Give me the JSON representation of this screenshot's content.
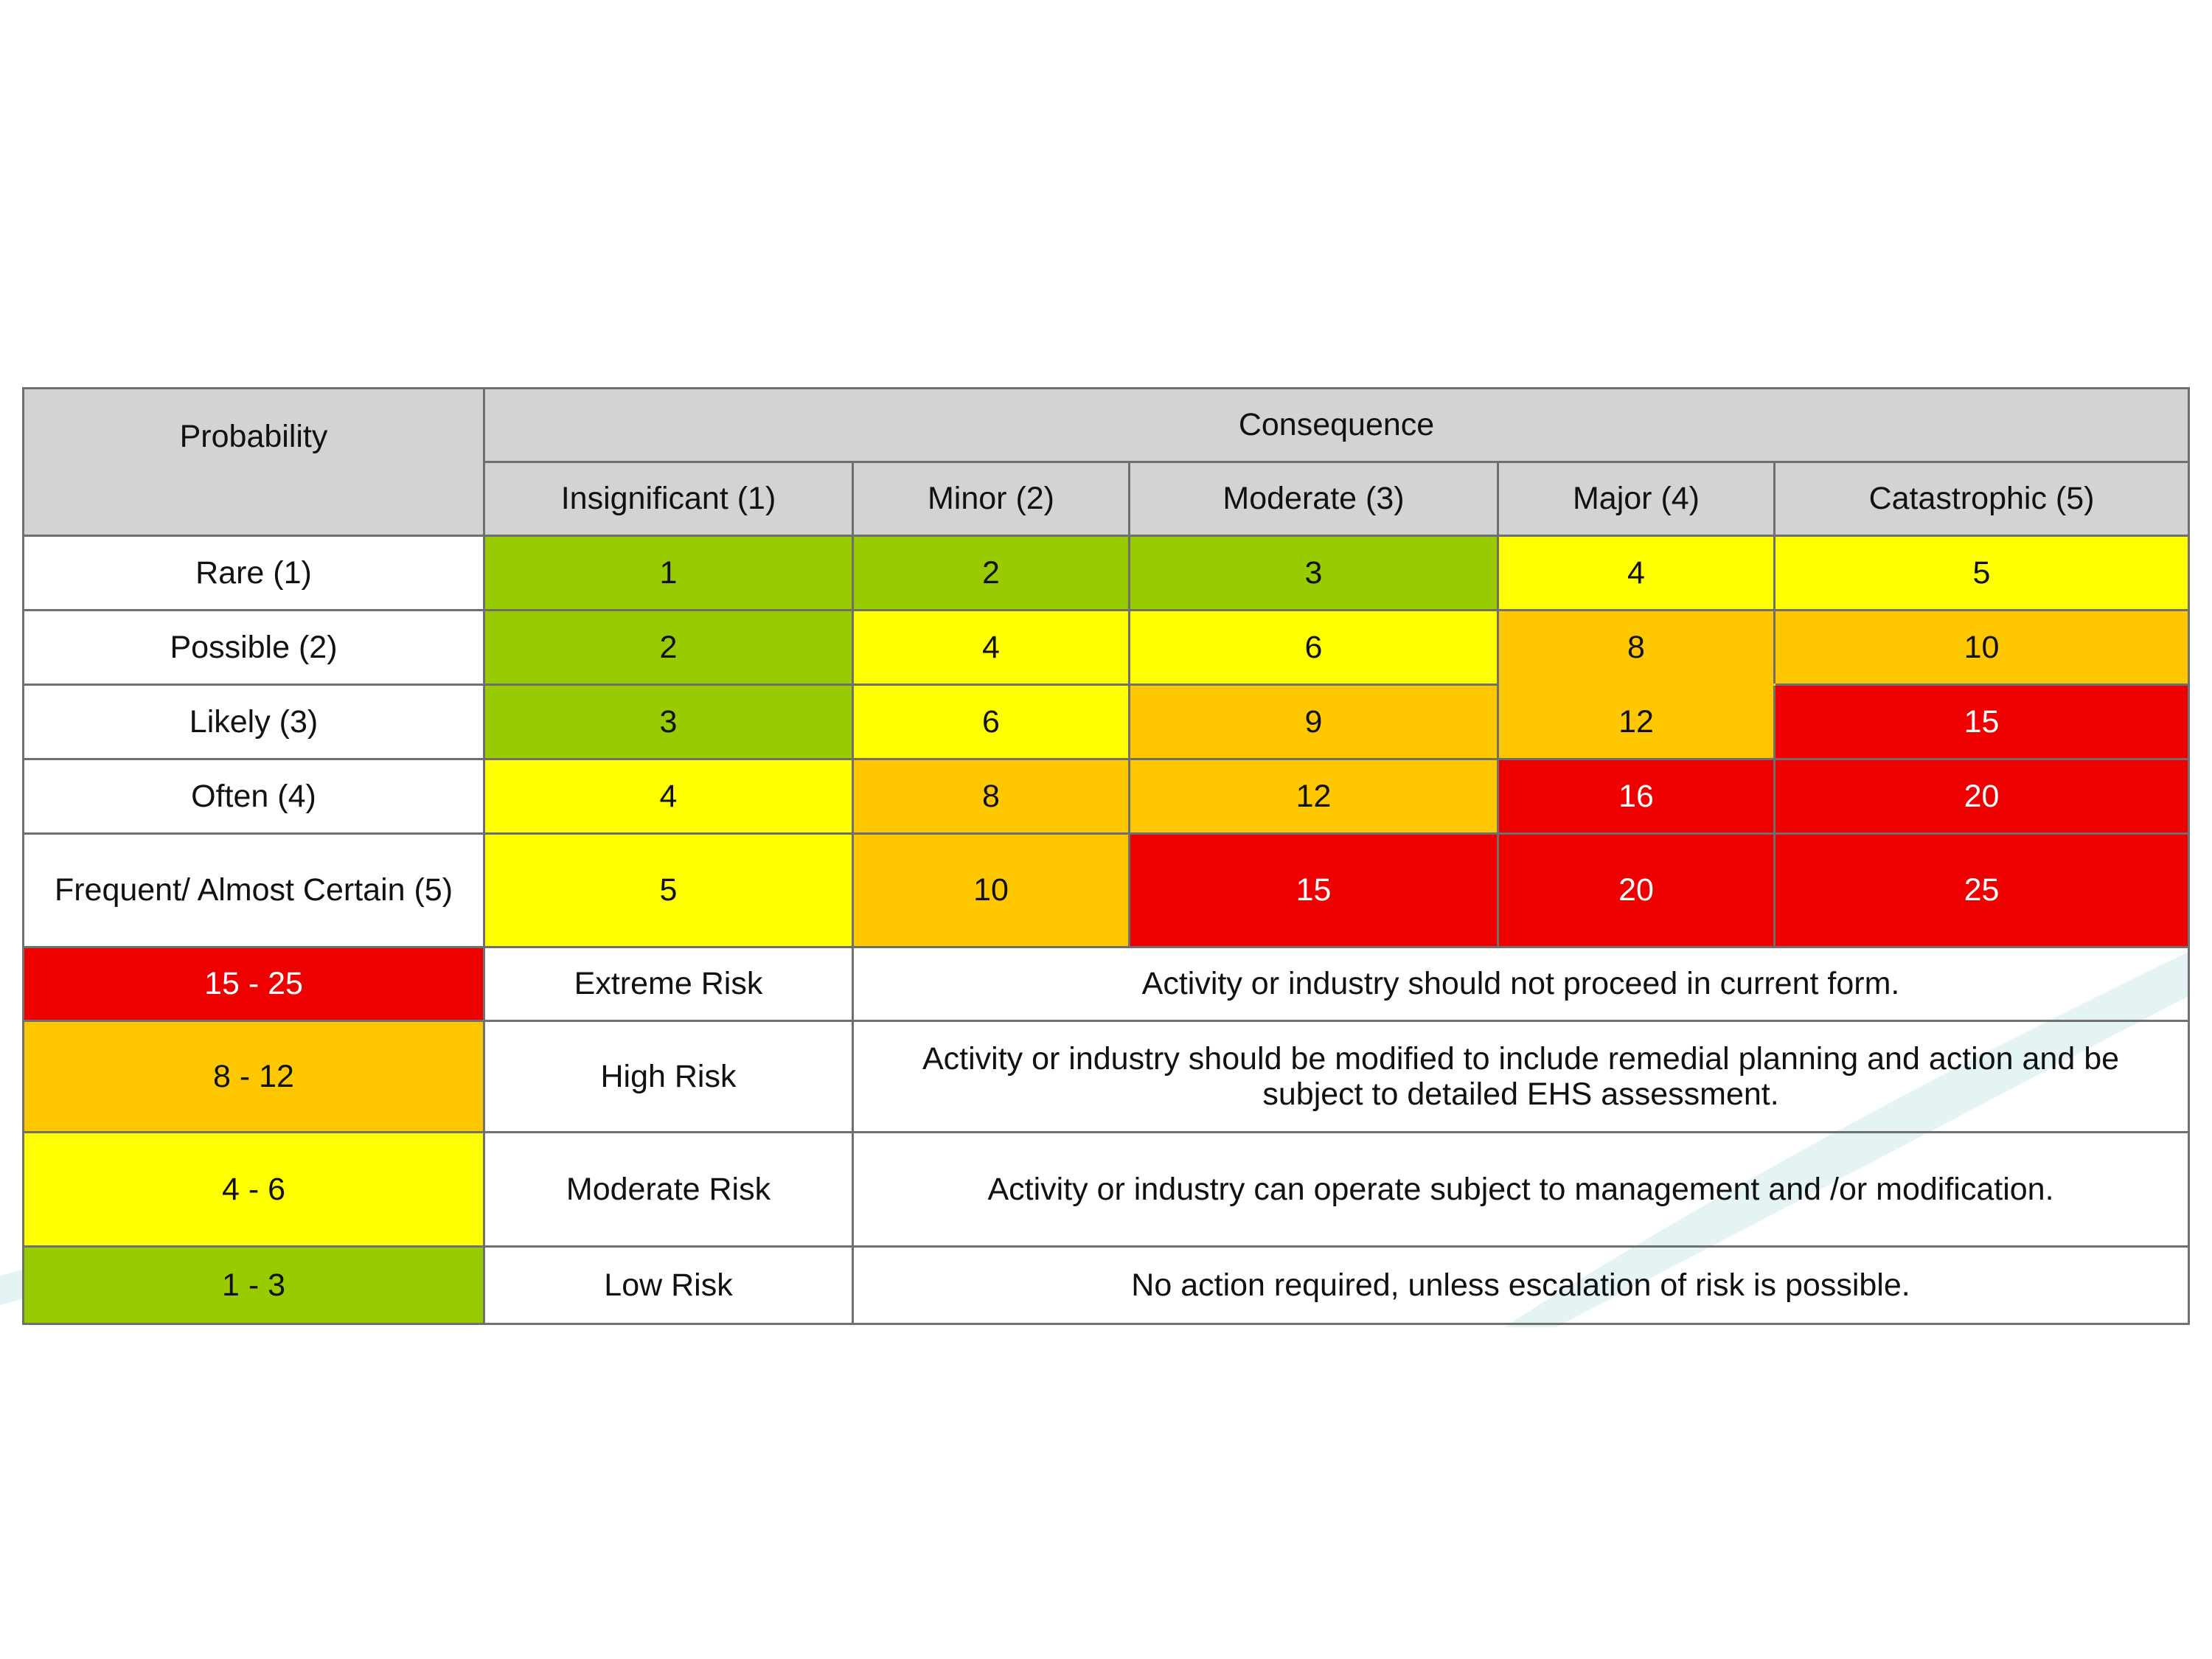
{
  "header": {
    "probability": "Probability",
    "consequence": "Consequence",
    "consequence_levels": [
      "Insignificant (1)",
      "Minor (2)",
      "Moderate (3)",
      "Major (4)",
      "Catastrophic (5)"
    ]
  },
  "rows": [
    {
      "label": "Rare (1)",
      "cells": [
        "1",
        "2",
        "3",
        "4",
        "5"
      ]
    },
    {
      "label": "Possible (2)",
      "cells": [
        "2",
        "4",
        "6",
        "8",
        "10"
      ]
    },
    {
      "label": "Likely (3)",
      "cells": [
        "3",
        "6",
        "9",
        "12",
        "15"
      ]
    },
    {
      "label": "Often (4)",
      "cells": [
        "4",
        "8",
        "12",
        "16",
        "20"
      ]
    },
    {
      "label": "Frequent/ Almost Certain (5)",
      "cells": [
        "5",
        "10",
        "15",
        "20",
        "25"
      ]
    }
  ],
  "legend": [
    {
      "range": "15 - 25",
      "level": "Extreme Risk",
      "description": "Activity or industry should not proceed in current form."
    },
    {
      "range": "8 - 12",
      "level": "High Risk",
      "description": "Activity or industry should be modified to include remedial planning and action and be subject to detailed EHS assessment."
    },
    {
      "range": "4 - 6",
      "level": "Moderate Risk",
      "description": "Activity or industry can operate subject to management and /or modification."
    },
    {
      "range": "1 - 3",
      "level": "Low Risk",
      "description": "No action required, unless escalation of risk is possible."
    }
  ],
  "colors": {
    "low": "#99cc00",
    "moderate": "#ffff00",
    "high": "#ffc700",
    "extreme": "#ee0000",
    "header_bg": "#d3d3d3",
    "border": "#6f6f6f"
  }
}
